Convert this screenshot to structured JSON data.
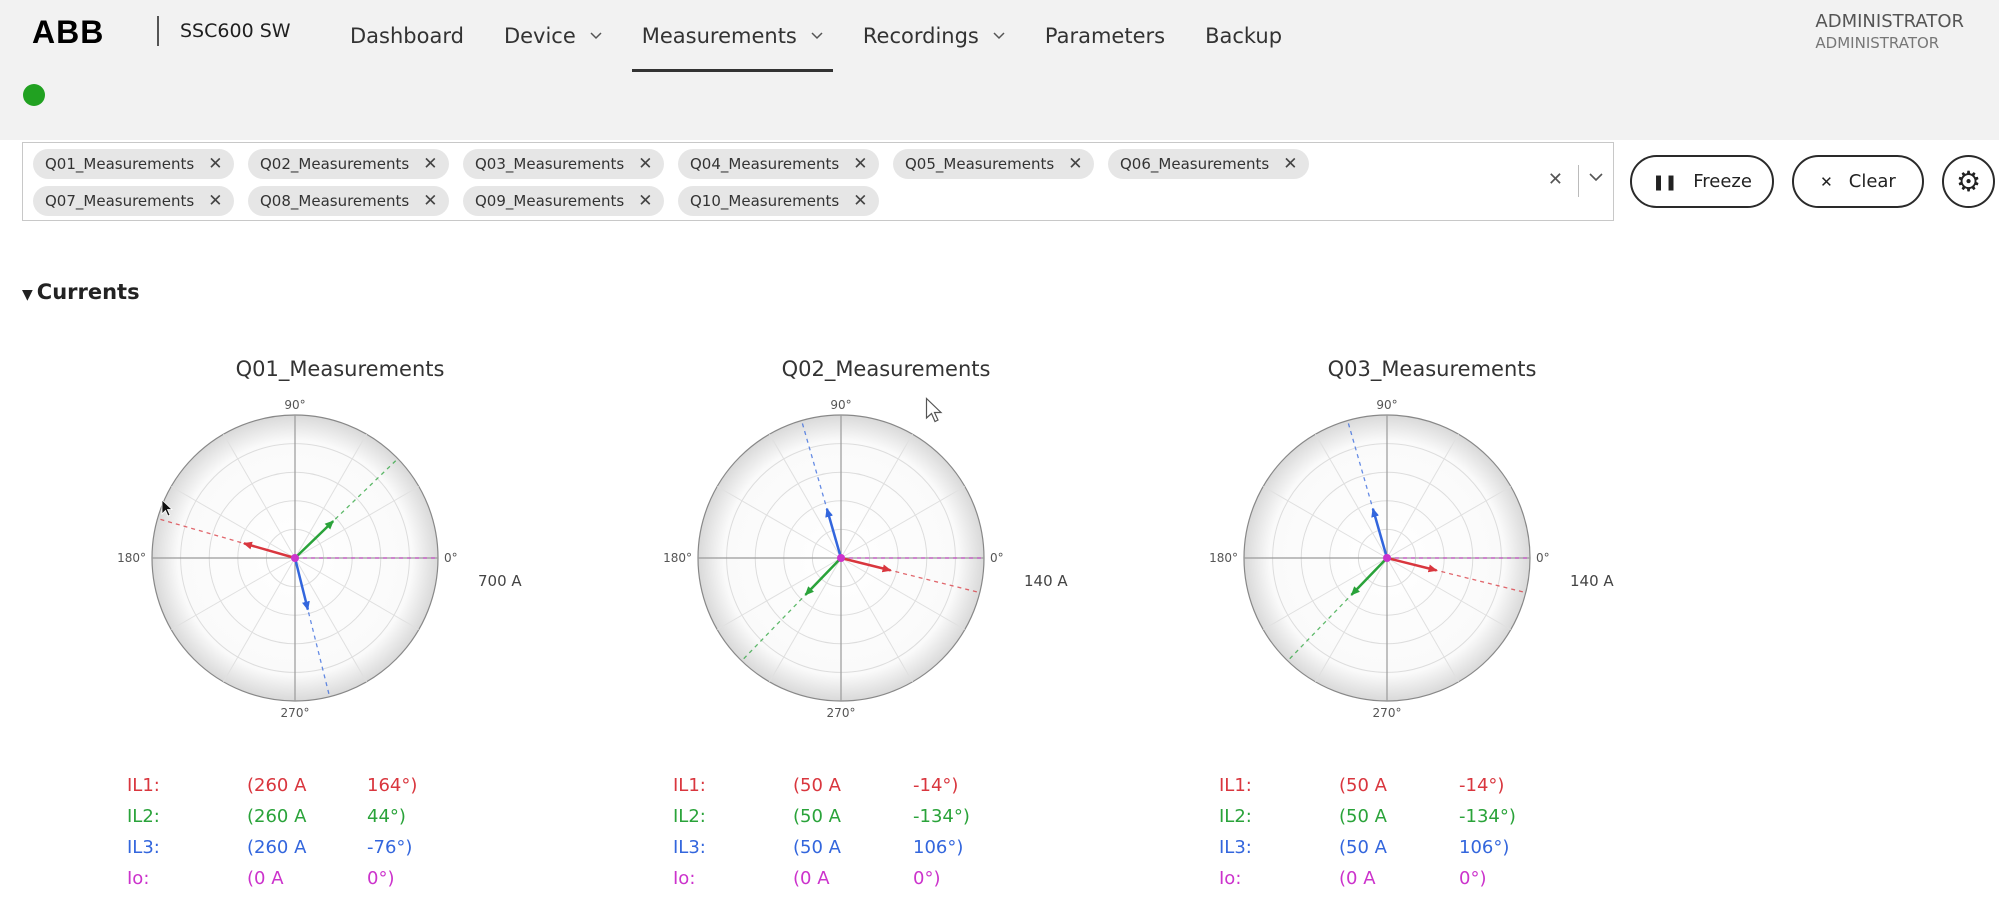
{
  "header": {
    "logo": "ABB",
    "app_title": "SSC600 SW",
    "nav": [
      {
        "label": "Dashboard",
        "has_menu": false,
        "active": false
      },
      {
        "label": "Device",
        "has_menu": true,
        "active": false
      },
      {
        "label": "Measurements",
        "has_menu": true,
        "active": true
      },
      {
        "label": "Recordings",
        "has_menu": true,
        "active": false
      },
      {
        "label": "Parameters",
        "has_menu": false,
        "active": false
      },
      {
        "label": "Backup",
        "has_menu": false,
        "active": false
      }
    ],
    "user_name": "ADMINISTRATOR",
    "user_role": "ADMINISTRATOR",
    "status_color": "#21a121"
  },
  "filter": {
    "chips": [
      "Q01_Measurements",
      "Q02_Measurements",
      "Q03_Measurements",
      "Q04_Measurements",
      "Q05_Measurements",
      "Q06_Measurements",
      "Q07_Measurements",
      "Q08_Measurements",
      "Q09_Measurements",
      "Q10_Measurements"
    ],
    "remove_glyph": "✕",
    "clear_glyph": "✕",
    "chevron_glyph": "⌄"
  },
  "toolbar": {
    "freeze_label": "Freeze",
    "clear_label": "Clear",
    "settings_icon": "gear-icon"
  },
  "section": {
    "title": "Currents"
  },
  "colors": {
    "IL1": "#d9363e",
    "IL2": "#2aa33a",
    "IL3": "#3366dd",
    "Io": "#cc33cc"
  },
  "panels": [
    {
      "title": "Q01_Measurements",
      "scale_label": "700 A",
      "angle_labels": {
        "top": "90°",
        "right": "0°",
        "bottom": "270°",
        "left": "180°"
      },
      "phasors": [
        {
          "name": "IL1:",
          "magnitude": "(260 A",
          "angle": "164°)",
          "angle_deg": 164,
          "mag": 260
        },
        {
          "name": "IL2:",
          "magnitude": "(260 A",
          "angle": "44°)",
          "angle_deg": 44,
          "mag": 260
        },
        {
          "name": "IL3:",
          "magnitude": "(260 A",
          "angle": "-76°)",
          "angle_deg": -76,
          "mag": 260
        },
        {
          "name": "Io:",
          "magnitude": "(0 A",
          "angle": "0°)",
          "angle_deg": 0,
          "mag": 0
        }
      ],
      "scale_max": 700
    },
    {
      "title": "Q02_Measurements",
      "scale_label": "140 A",
      "angle_labels": {
        "top": "90°",
        "right": "0°",
        "bottom": "270°",
        "left": "180°"
      },
      "phasors": [
        {
          "name": "IL1:",
          "magnitude": "(50 A",
          "angle": "-14°)",
          "angle_deg": -14,
          "mag": 50
        },
        {
          "name": "IL2:",
          "magnitude": "(50 A",
          "angle": "-134°)",
          "angle_deg": -134,
          "mag": 50
        },
        {
          "name": "IL3:",
          "magnitude": "(50 A",
          "angle": "106°)",
          "angle_deg": 106,
          "mag": 50
        },
        {
          "name": "Io:",
          "magnitude": "(0 A",
          "angle": "0°)",
          "angle_deg": 0,
          "mag": 0
        }
      ],
      "scale_max": 140
    },
    {
      "title": "Q03_Measurements",
      "scale_label": "140 A",
      "angle_labels": {
        "top": "90°",
        "right": "0°",
        "bottom": "270°",
        "left": "180°"
      },
      "phasors": [
        {
          "name": "IL1:",
          "magnitude": "(50 A",
          "angle": "-14°)",
          "angle_deg": -14,
          "mag": 50
        },
        {
          "name": "IL2:",
          "magnitude": "(50 A",
          "angle": "-134°)",
          "angle_deg": -134,
          "mag": 50
        },
        {
          "name": "IL3:",
          "magnitude": "(50 A",
          "angle": "106°)",
          "angle_deg": 106,
          "mag": 50
        },
        {
          "name": "Io:",
          "magnitude": "(0 A",
          "angle": "0°)",
          "angle_deg": 0,
          "mag": 0
        }
      ],
      "scale_max": 140
    }
  ]
}
